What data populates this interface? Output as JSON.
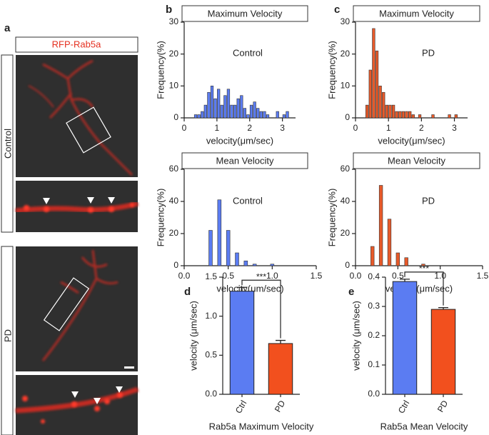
{
  "figure": {
    "panel_labels": [
      "a",
      "b",
      "c",
      "d",
      "e"
    ],
    "image_title": "RFP-Rab5a",
    "image_conditions": [
      "Control",
      "PD"
    ]
  },
  "chart_data": [
    {
      "type": "histogram",
      "title": "Maximum Velocity",
      "annotation": "Control",
      "xlabel": "velocity(μm/sec)",
      "ylabel": "Frequency(%)",
      "color": "#5b7cf2",
      "bins": [
        0.3,
        0.4,
        0.5,
        0.6,
        0.7,
        0.8,
        0.9,
        1.0,
        1.1,
        1.2,
        1.3,
        1.4,
        1.5,
        1.6,
        1.7,
        1.8,
        1.9,
        2.0,
        2.1,
        2.2,
        2.3,
        2.4,
        2.5,
        2.6,
        2.7,
        2.8,
        2.9,
        3.0,
        3.1,
        3.2
      ],
      "values": [
        1,
        1,
        2,
        4,
        8,
        10,
        6,
        9,
        4,
        7,
        9,
        4,
        4,
        6,
        7,
        3,
        1,
        4,
        5,
        3,
        2,
        2,
        1,
        0,
        0,
        2,
        0,
        1,
        2
      ],
      "xlim": [
        0,
        3.4
      ],
      "ylim": [
        0,
        30
      ],
      "xticks": [
        0,
        1,
        2,
        3
      ],
      "yticks": [
        0,
        10,
        20,
        30
      ]
    },
    {
      "type": "histogram",
      "title": "Maximum Velocity",
      "annotation": "PD",
      "xlabel": "velocity(μm/sec)",
      "ylabel": "Frequency(%)",
      "color": "#e85a2a",
      "bins": [
        0.3,
        0.4,
        0.5,
        0.6,
        0.7,
        0.8,
        0.9,
        1.0,
        1.1,
        1.2,
        1.3,
        1.4,
        1.5,
        1.6,
        1.7,
        1.8,
        1.9,
        2.0,
        2.1,
        2.2,
        2.3,
        2.4,
        2.5,
        2.6,
        2.7,
        2.8,
        2.9,
        3.0,
        3.1
      ],
      "values": [
        4,
        15,
        28,
        21,
        10,
        8,
        4,
        4,
        4,
        2,
        2,
        2,
        2,
        2,
        1,
        0,
        1,
        0,
        0,
        0,
        1,
        0,
        0,
        0,
        0,
        1,
        0,
        1
      ],
      "xlim": [
        0,
        3.4
      ],
      "ylim": [
        0,
        30
      ],
      "xticks": [
        0,
        1,
        2,
        3
      ],
      "yticks": [
        0,
        10,
        20,
        30
      ]
    },
    {
      "type": "histogram",
      "title": "Mean Velocity",
      "annotation": "Control",
      "xlabel": "velocity(μm/sec)",
      "ylabel": "Frequency(%)",
      "color": "#5b7cf2",
      "bins": [
        0.25,
        0.35,
        0.45,
        0.55,
        0.65,
        0.75,
        0.85,
        0.95,
        1.05
      ],
      "values": [
        22,
        41,
        22,
        8,
        3,
        1,
        0,
        1
      ],
      "xlim": [
        0,
        1.5
      ],
      "ylim": [
        0,
        60
      ],
      "xticks": [
        {
          "value": 0,
          "label": "0.0"
        },
        0.5,
        {
          "value": 1,
          "label": "1.0"
        },
        1.5
      ],
      "yticks": [
        0,
        20,
        40,
        60
      ]
    },
    {
      "type": "histogram",
      "title": "Mean Velocity",
      "annotation": "PD",
      "xlabel": "velocity(μm/sec)",
      "ylabel": "Frequency(%)",
      "color": "#e85a2a",
      "bins": [
        0.15,
        0.25,
        0.35,
        0.45,
        0.55,
        0.65,
        0.75,
        0.85
      ],
      "values": [
        12,
        50,
        29,
        8,
        5,
        0,
        1
      ],
      "xlim": [
        0,
        1.5
      ],
      "ylim": [
        0,
        60
      ],
      "xticks": [
        {
          "value": 0,
          "label": "0.0"
        },
        0.5,
        {
          "value": 1,
          "label": "1.0"
        },
        1.5
      ],
      "yticks": [
        0,
        20,
        40,
        60
      ]
    },
    {
      "type": "bar",
      "xlabel": "Rab5a Maximum Velocity",
      "ylabel": "velocity (μm/sec)",
      "categories": [
        "Ctrl",
        "PD"
      ],
      "values": [
        1.32,
        0.65
      ],
      "errors": [
        0.05,
        0.04
      ],
      "colors": [
        "#5b7cf2",
        "#f2501e"
      ],
      "significance": "***",
      "ylim": [
        0,
        1.5
      ],
      "yticks": [
        {
          "value": 0,
          "label": "0.0"
        },
        0.5,
        {
          "value": 1,
          "label": "1.0"
        },
        1.5
      ]
    },
    {
      "type": "bar",
      "xlabel": "Rab5a Mean Velocity",
      "ylabel": "velocity (μm/sec)",
      "categories": [
        "Ctrl",
        "PD"
      ],
      "values": [
        0.385,
        0.29
      ],
      "errors": [
        0.008,
        0.006
      ],
      "colors": [
        "#5b7cf2",
        "#f2501e"
      ],
      "significance": "***",
      "ylim": [
        0,
        0.4
      ],
      "yticks": [
        {
          "value": 0,
          "label": "0.0"
        },
        0.1,
        0.2,
        0.3,
        0.4
      ]
    }
  ]
}
